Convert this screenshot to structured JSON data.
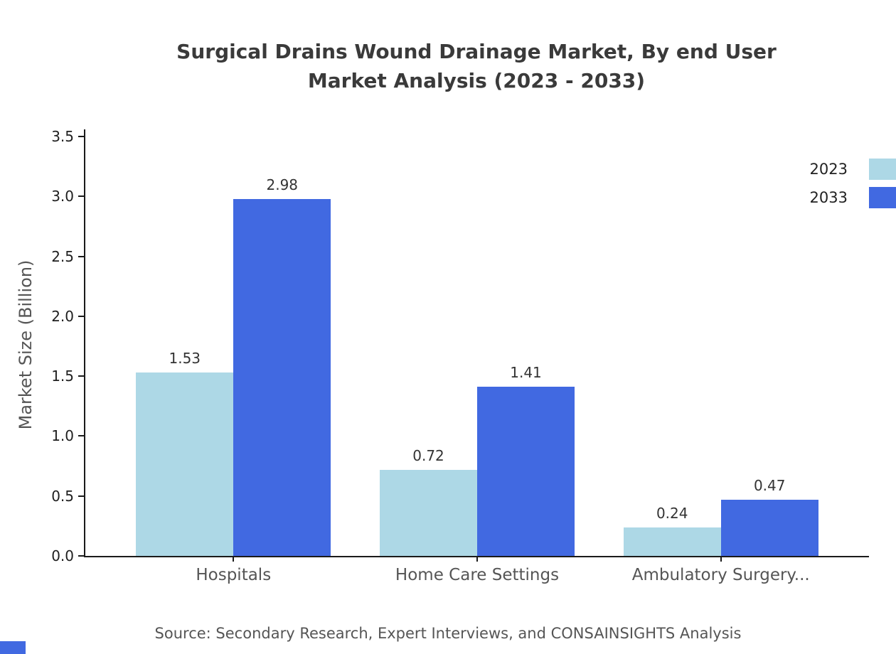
{
  "chart": {
    "title_line1": "Surgical Drains Wound Drainage Market, By end User",
    "title_line2": "Market Analysis (2023 - 2033)",
    "source": "Source: Secondary Research, Expert Interviews, and CONSAINSIGHTS Analysis"
  },
  "chart_data": {
    "type": "bar",
    "title": "Surgical Drains Wound Drainage Market, By end User Market Analysis (2023 - 2033)",
    "categories": [
      "Hospitals",
      "Home Care Settings",
      "Ambulatory Surgery..."
    ],
    "series": [
      {
        "name": "2023",
        "color": "#ADD8E6",
        "values": [
          1.53,
          0.72,
          0.24
        ]
      },
      {
        "name": "2033",
        "color": "#4169E1",
        "values": [
          2.98,
          1.41,
          0.47
        ]
      }
    ],
    "xlabel": "",
    "ylabel": "Market Size (Billion)",
    "ylim": [
      0,
      3.5
    ],
    "yticks": [
      0.0,
      0.5,
      1.0,
      1.5,
      2.0,
      2.5,
      3.0,
      3.5
    ],
    "grid": false,
    "legend_position": "top-right",
    "value_labels": true,
    "axis_color": "#1a1a1a"
  }
}
